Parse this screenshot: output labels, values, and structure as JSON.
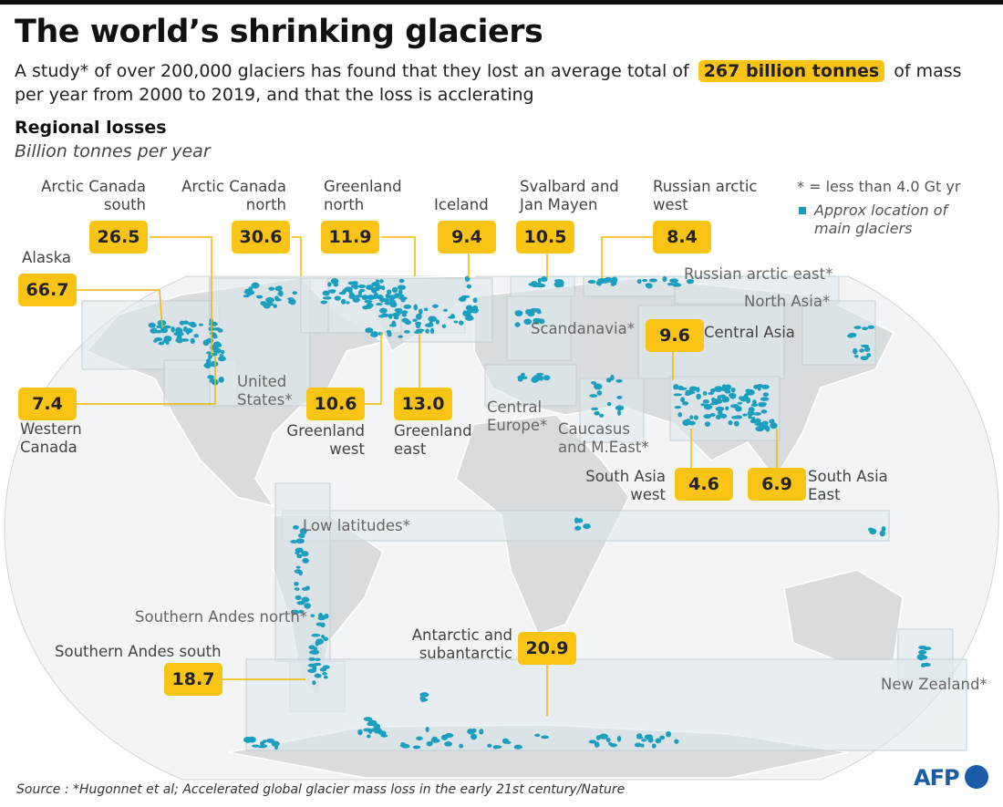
{
  "header": {
    "title": "The world’s shrinking glaciers",
    "subtitle": {
      "before": "A study* of over 200,000 glaciers has found that they lost an average total of",
      "highlight": "267 billion tonnes",
      "after": "of mass per year from 2000 to 2019, and that the loss is acclerating"
    }
  },
  "section": {
    "title": "Regional losses",
    "unit": "Billion tonnes per year"
  },
  "legend": {
    "note": "* = less than 4.0 Gt yr",
    "glaciers": "Approx location of main glaciers"
  },
  "regions": [
    {
      "label": "Alaska",
      "value": "66.7"
    },
    {
      "label": "Arctic Canada south",
      "value": "26.5"
    },
    {
      "label": "Arctic Canada north",
      "value": "30.6"
    },
    {
      "label": "Greenland north",
      "value": "11.9"
    },
    {
      "label": "Iceland",
      "value": "9.4"
    },
    {
      "label": "Svalbard and Jan Mayen",
      "value": "10.5"
    },
    {
      "label": "Russian arctic west",
      "value": "8.4"
    },
    {
      "label": "Central Asia",
      "value": "9.6"
    },
    {
      "label": "Western Canada",
      "value": "7.4"
    },
    {
      "label": "Greenland west",
      "value": "10.6"
    },
    {
      "label": "Greenland east",
      "value": "13.0"
    },
    {
      "label": "South Asia west",
      "value": "4.6"
    },
    {
      "label": "South Asia East",
      "value": "6.9"
    },
    {
      "label": "Southern Andes south",
      "value": "18.7"
    },
    {
      "label": "Antarctic and subantarctic",
      "value": "20.9"
    }
  ],
  "minor_regions": [
    "Russian arctic east*",
    "North Asia*",
    "Scandanavia*",
    "United States*",
    "Central Europe*",
    "Caucasus and M.East*",
    "Low latitudes*",
    "Southern Andes north*",
    "New Zealand*"
  ],
  "source": "Source : *Hugonnet et al; Accelerated global glacier mass loss in the early 21st century/Nature",
  "logo": "AFP"
}
